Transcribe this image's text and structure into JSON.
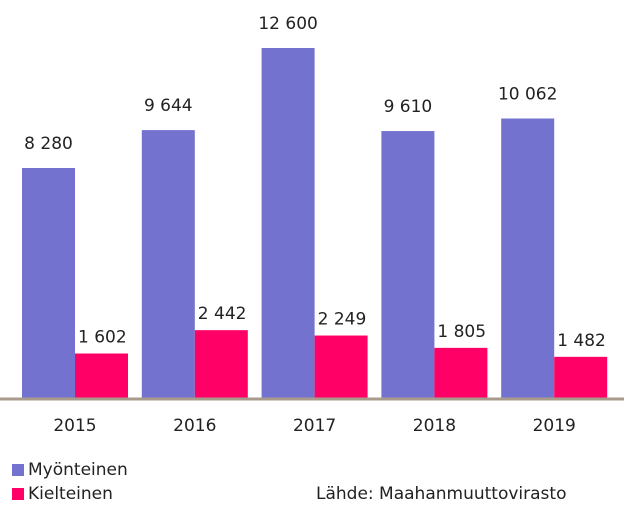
{
  "chart_data": {
    "type": "bar",
    "categories": [
      "2015",
      "2016",
      "2017",
      "2018",
      "2019"
    ],
    "series": [
      {
        "name": "Myönteinen",
        "color": "#7373cf",
        "values": [
          8280,
          9644,
          12600,
          9610,
          10062
        ],
        "value_labels": [
          "8 280",
          "9 644",
          "12 600",
          "9 610",
          "10 062"
        ]
      },
      {
        "name": "Kielteinen",
        "color": "#ff0066",
        "values": [
          1602,
          2442,
          2249,
          1805,
          1482
        ],
        "value_labels": [
          "1 602",
          "2 442",
          "2 249",
          "1 805",
          "1 482"
        ]
      }
    ],
    "ylim": [
      0,
      12600
    ],
    "legend": "bottom-left",
    "source": "Lähde: Maahanmuuttovirasto"
  }
}
